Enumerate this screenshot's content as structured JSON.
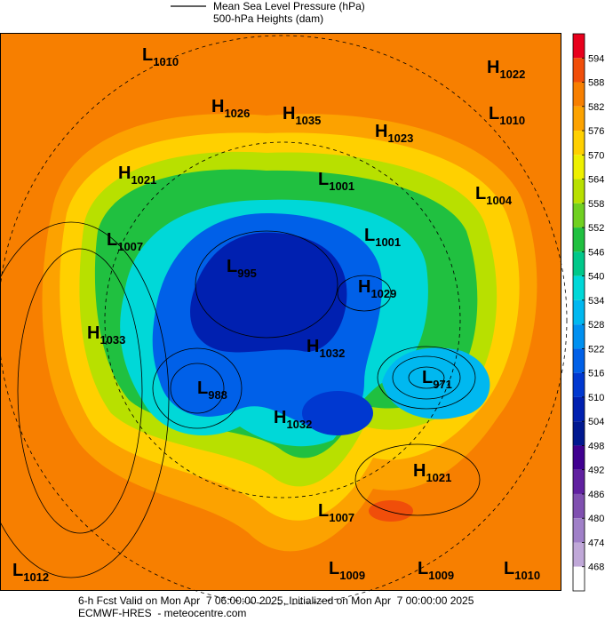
{
  "header": {
    "line_legend": [
      "Mean Sea Level Pressure (hPa)",
      "500-hPa Heights (dam)"
    ]
  },
  "centers": [
    {
      "type": "L",
      "value": 1010
    },
    {
      "type": "H",
      "value": 1022
    },
    {
      "type": "H",
      "value": 1026
    },
    {
      "type": "H",
      "value": 1035
    },
    {
      "type": "H",
      "value": 1023
    },
    {
      "type": "L",
      "value": 1010
    },
    {
      "type": "H",
      "value": 1021
    },
    {
      "type": "L",
      "value": 1001
    },
    {
      "type": "L",
      "value": 1004
    },
    {
      "type": "L",
      "value": 1007
    },
    {
      "type": "L",
      "value": 1001
    },
    {
      "type": "L",
      "value": 995
    },
    {
      "type": "H",
      "value": 1029
    },
    {
      "type": "H",
      "value": 1033
    },
    {
      "type": "H",
      "value": 1032
    },
    {
      "type": "L",
      "value": 971
    },
    {
      "type": "L",
      "value": 988
    },
    {
      "type": "H",
      "value": 1032
    },
    {
      "type": "H",
      "value": 1021
    },
    {
      "type": "L",
      "value": 1007
    },
    {
      "type": "L",
      "value": 1012
    },
    {
      "type": "L",
      "value": 1009
    },
    {
      "type": "L",
      "value": 1009
    },
    {
      "type": "L",
      "value": 1010
    }
  ],
  "colorbar": {
    "ticks": [
      594,
      588,
      582,
      576,
      570,
      564,
      558,
      552,
      546,
      540,
      534,
      528,
      522,
      516,
      510,
      504,
      498,
      492,
      486,
      480,
      474,
      468
    ],
    "colors": [
      "#e8001c",
      "#f04e0a",
      "#f77f00",
      "#fca200",
      "#ffd000",
      "#eef000",
      "#b8e000",
      "#70d020",
      "#20c040",
      "#00c88a",
      "#00d8d8",
      "#00b8f0",
      "#0090f0",
      "#0060e8",
      "#0038d0",
      "#0020b0",
      "#001890",
      "#400090",
      "#6020a0",
      "#8050b0",
      "#a080c8",
      "#c0a8d8",
      "#ffffff"
    ]
  },
  "footer": [
    "6-h Fcst Valid on Mon Apr  7 06:00:00 2025, Initialized on Mon Apr  7 00:00:00 2025",
    "ECMWF-HRES  - meteocentre.com"
  ]
}
